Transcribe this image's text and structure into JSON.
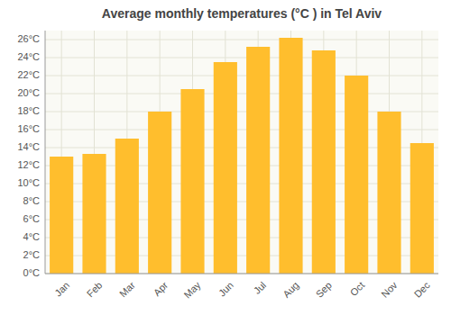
{
  "chart_data": {
    "type": "bar",
    "title": "Average monthly temperatures (°C ) in Tel Aviv",
    "categories": [
      "Jan",
      "Feb",
      "Mar",
      "Apr",
      "May",
      "Jun",
      "Jul",
      "Aug",
      "Sep",
      "Oct",
      "Nov",
      "Dec"
    ],
    "values": [
      13.0,
      13.3,
      15.0,
      18.0,
      20.5,
      23.5,
      25.2,
      26.2,
      24.8,
      22.0,
      18.0,
      14.5
    ],
    "color": "#FFBE2D",
    "ylim": [
      0,
      27
    ],
    "yticks": [
      {
        "value": 0,
        "label": "0°C"
      },
      {
        "value": 2,
        "label": "2°C"
      },
      {
        "value": 4,
        "label": "4°C"
      },
      {
        "value": 6,
        "label": "6°C"
      },
      {
        "value": 8,
        "label": "8°C"
      },
      {
        "value": 10,
        "label": "10°C"
      },
      {
        "value": 12,
        "label": "12°C"
      },
      {
        "value": 14,
        "label": "14°C"
      },
      {
        "value": 16,
        "label": "16°C"
      },
      {
        "value": 18,
        "label": "18°C"
      },
      {
        "value": 20,
        "label": "20°C"
      },
      {
        "value": 22,
        "label": "22°C"
      },
      {
        "value": 24,
        "label": "24°C"
      },
      {
        "value": 26,
        "label": "26°C"
      }
    ],
    "grid": true
  }
}
